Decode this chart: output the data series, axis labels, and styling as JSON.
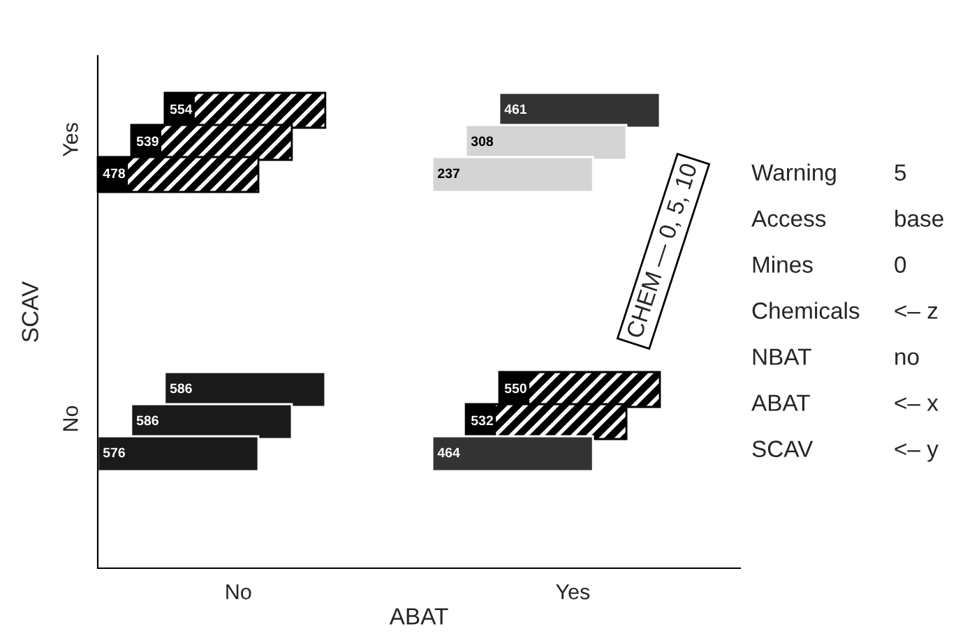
{
  "chart_data": {
    "type": "other",
    "xlabel": "ABAT",
    "ylabel": "SCAV",
    "categories": [
      "No",
      "Yes"
    ],
    "y_categories": [
      "Yes",
      "No"
    ],
    "data_labels": true,
    "series": [
      {
        "values": [
          478,
          237
        ],
        "colors": [
          "#000000",
          "#d4d4d4"
        ]
      },
      {
        "values": [
          539,
          308
        ],
        "colors": [
          "#000000",
          "#d4d4d4"
        ]
      },
      {
        "values": [
          554,
          461
        ],
        "colors": [
          "#000000",
          "#333333"
        ]
      },
      {
        "values": [
          576,
          464
        ],
        "colors": [
          "#1a1a1a",
          "#333333"
        ]
      },
      {
        "values": [
          586,
          532
        ],
        "colors": [
          "#1a1a1a",
          "#000000"
        ]
      },
      {
        "values": [
          586,
          550
        ],
        "colors": [
          "#1a1a1a",
          "#000000"
        ]
      }
    ],
    "annotations": [
      "CHEM — 0, 5, 10",
      "Warning",
      "5",
      "Access",
      "base",
      "Mines",
      "0",
      "Chemicals",
      "<– z",
      "NBAT",
      "no",
      "ABAT",
      "<– x",
      "SCAV",
      "<– y"
    ]
  }
}
